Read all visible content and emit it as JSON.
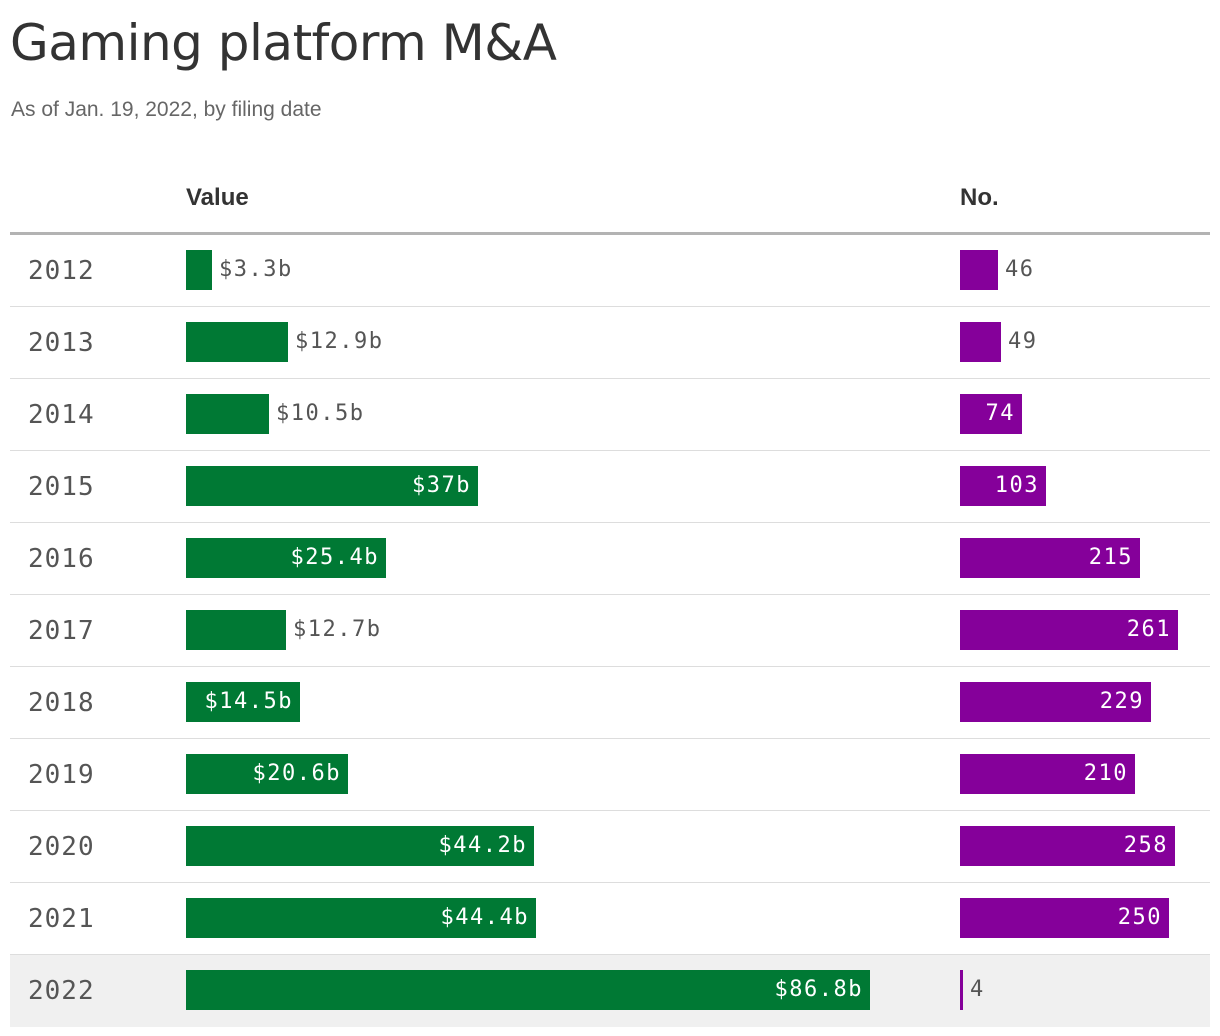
{
  "title": "Gaming platform M&A",
  "subtitle": "As of Jan. 19, 2022, by filing date",
  "columns": {
    "value": "Value",
    "count": "No."
  },
  "colors": {
    "value_bar": "#007934",
    "count_bar": "#85009a",
    "label_dark": "#555555",
    "label_light": "#ffffff",
    "highlight_row": "#f0f0f0"
  },
  "chart_data": {
    "type": "bar",
    "title": "Gaming platform M&A",
    "subtitle": "As of Jan. 19, 2022, by filing date",
    "categories": [
      "2012",
      "2013",
      "2014",
      "2015",
      "2016",
      "2017",
      "2018",
      "2019",
      "2020",
      "2021",
      "2022"
    ],
    "series": [
      {
        "name": "Value",
        "unit": "billions USD",
        "values": [
          3.3,
          12.9,
          10.5,
          37,
          25.4,
          12.7,
          14.5,
          20.6,
          44.2,
          44.4,
          86.8
        ],
        "labels": [
          "$3.3b",
          "$12.9b",
          "$10.5b",
          "$37b",
          "$25.4b",
          "$12.7b",
          "$14.5b",
          "$20.6b",
          "$44.2b",
          "$44.4b",
          "$86.8b"
        ]
      },
      {
        "name": "No.",
        "values": [
          46,
          49,
          74,
          103,
          215,
          261,
          229,
          210,
          258,
          250,
          4
        ],
        "labels": [
          "46",
          "49",
          "74",
          "103",
          "215",
          "261",
          "229",
          "210",
          "258",
          "250",
          "4"
        ]
      }
    ],
    "highlighted_category": "2022"
  }
}
